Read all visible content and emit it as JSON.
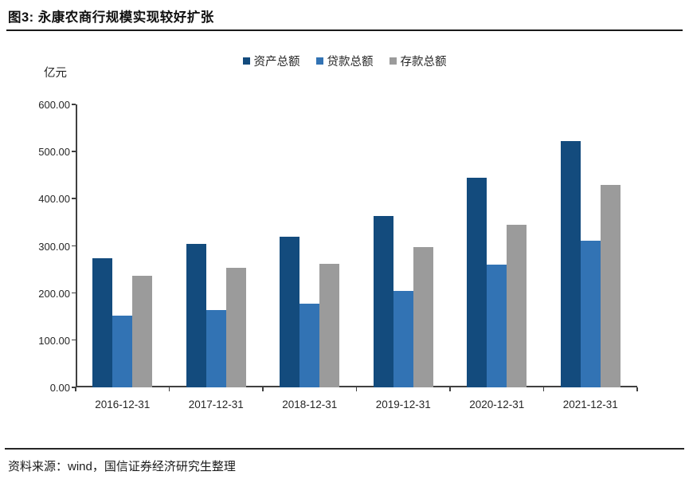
{
  "page": {
    "title": "图3: 永康农商行规模实现较好扩张",
    "source_note": "资料来源：wind，国信证券经济研究生整理"
  },
  "chart_data": {
    "type": "bar",
    "title": "图3: 永康农商行规模实现较好扩张",
    "unit_label": "亿元",
    "categories": [
      "2016-12-31",
      "2017-12-31",
      "2018-12-31",
      "2019-12-31",
      "2020-12-31",
      "2021-12-31"
    ],
    "series": [
      {
        "name": "资产总额",
        "color": "#134b7d",
        "values": [
          274,
          305,
          320,
          364,
          444,
          523
        ]
      },
      {
        "name": "贷款总额",
        "color": "#3273b4",
        "values": [
          152,
          164,
          178,
          205,
          260,
          311
        ]
      },
      {
        "name": "存款总额",
        "color": "#9b9b9b",
        "values": [
          237,
          254,
          262,
          298,
          345,
          430
        ]
      }
    ],
    "ylim": [
      0,
      600
    ],
    "ytick_step": 100,
    "ytick_labels": [
      "0.00",
      "100.00",
      "200.00",
      "300.00",
      "400.00",
      "500.00",
      "600.00"
    ],
    "grid": false,
    "legend_position": "top-center"
  }
}
